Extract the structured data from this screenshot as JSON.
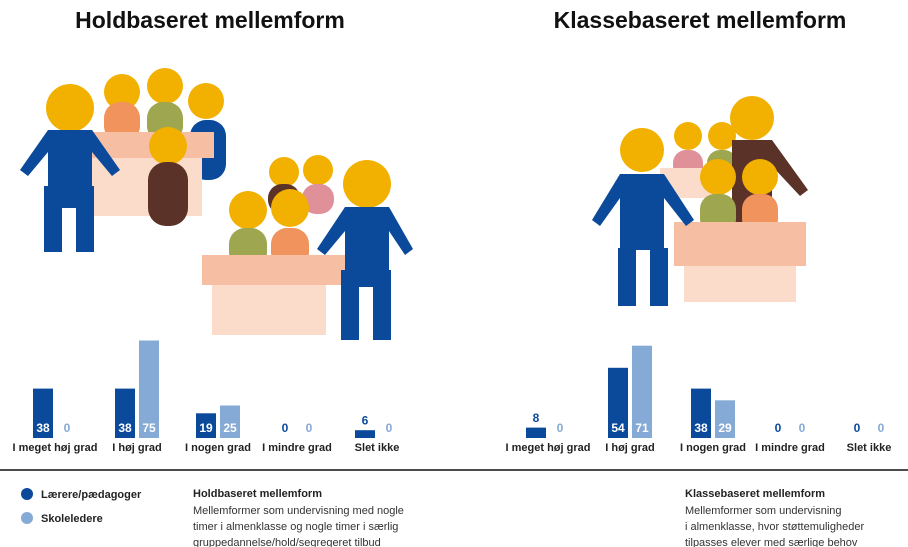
{
  "chart_data": [
    {
      "type": "bar",
      "title": "Holdbaseret mellemform",
      "categories": [
        "I meget høj grad",
        "I høj grad",
        "I nogen grad",
        "I mindre grad",
        "Slet ikke"
      ],
      "series": [
        {
          "name": "Lærere/pædagoger",
          "color": "#0b4a9b",
          "values": [
            38,
            38,
            19,
            0,
            6
          ]
        },
        {
          "name": "Skoleledere",
          "color": "#85aad5",
          "values": [
            0,
            75,
            25,
            0,
            0
          ]
        }
      ],
      "description": [
        "Mellemformer som undervisning med nogle",
        "timer i almenklasse og nogle timer i særlig",
        "gruppedannelse/hold/segregeret tilbud"
      ]
    },
    {
      "type": "bar",
      "title": "Klassebaseret mellemform",
      "categories": [
        "I meget høj grad",
        "I høj grad",
        "I nogen grad",
        "I mindre grad",
        "Slet ikke"
      ],
      "series": [
        {
          "name": "Lærere/pædagoger",
          "color": "#0b4a9b",
          "values": [
            8,
            54,
            38,
            0,
            0
          ]
        },
        {
          "name": "Skoleledere",
          "color": "#85aad5",
          "values": [
            0,
            71,
            29,
            0,
            0
          ]
        }
      ],
      "description": [
        "Mellemformer som undervisning",
        "i almenklasse, hvor støttemuligheder",
        "tilpasses elever med særlige behov"
      ]
    }
  ]
}
